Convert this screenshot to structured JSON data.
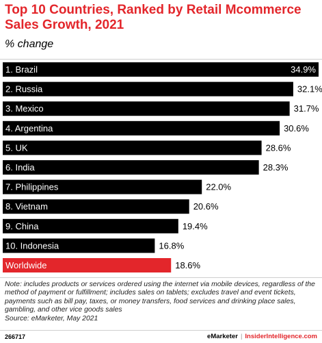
{
  "header": {
    "title": "Top 10 Countries, Ranked by Retail Mcommerce Sales Growth, 2021",
    "subtitle": "% change"
  },
  "chart_data": {
    "type": "bar",
    "orientation": "horizontal",
    "title": "Top 10 Countries, Ranked by Retail Mcommerce Sales Growth, 2021",
    "subtitle": "% change",
    "categories": [
      "1. Brazil",
      "2. Russia",
      "3. Mexico",
      "4. Argentina",
      "5. UK",
      "6. India",
      "7. Philippines",
      "8. Vietnam",
      "9. China",
      "10. Indonesia",
      "Worldwide"
    ],
    "values": [
      34.9,
      32.1,
      31.7,
      30.6,
      28.6,
      28.3,
      22.0,
      20.6,
      19.4,
      16.8,
      18.6
    ],
    "value_labels": [
      "34.9%",
      "32.1%",
      "31.7%",
      "30.6%",
      "28.6%",
      "28.3%",
      "22.0%",
      "20.6%",
      "19.4%",
      "16.8%",
      "18.6%"
    ],
    "xlim": [
      0,
      34.9
    ],
    "grid": false,
    "colors": {
      "bar": "#000000",
      "highlight": "#e3262b"
    },
    "highlight_category": "Worldwide"
  },
  "footer": {
    "note": "Note: includes products or services ordered using the internet via mobile devices, regardless of the method of payment or fulfillment; includes sales on tablets; excludes travel and event tickets, payments such as bill pay, taxes, or money transfers, food services and drinking place sales, gambling, and other vice goods sales",
    "source": "Source: eMarketer, May 2021",
    "chart_id": "266717",
    "brand_1": "eMarketer",
    "separator": "|",
    "brand_2": "InsiderIntelligence.com"
  }
}
